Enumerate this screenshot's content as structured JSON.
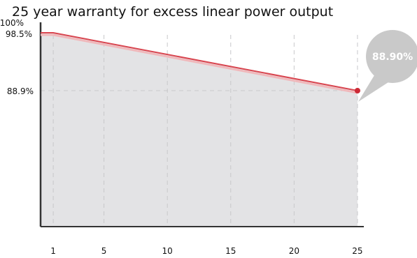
{
  "chart_data": {
    "type": "area",
    "title": "25 year warranty for excess linear power output",
    "x": [
      0,
      1,
      25
    ],
    "y": [
      98.5,
      98.5,
      88.9
    ],
    "x_ticks": [
      1,
      5,
      10,
      15,
      20,
      25
    ],
    "x_tick_labels": [
      "1",
      "5",
      "10",
      "15",
      "20",
      "25"
    ],
    "xlim": [
      0,
      25.5
    ],
    "y_ticks": [
      {
        "value": 100,
        "label": "100%"
      },
      {
        "value": 98.5,
        "label": "98.5%"
      },
      {
        "value": 88.9,
        "label": "88.9%"
      }
    ],
    "end_marker": {
      "x": 25,
      "y": 88.9
    },
    "callout_label": "88.90%",
    "colors": {
      "line": "#d9454f",
      "line_shadow": "#f0b8bb",
      "fill": "#e3e3e5",
      "grid": "#c8c8ca",
      "axis": "#333333",
      "marker": "#cc2a36",
      "callout": "#c9c9c9",
      "callout_text": "#ffffff"
    },
    "grid": true
  }
}
